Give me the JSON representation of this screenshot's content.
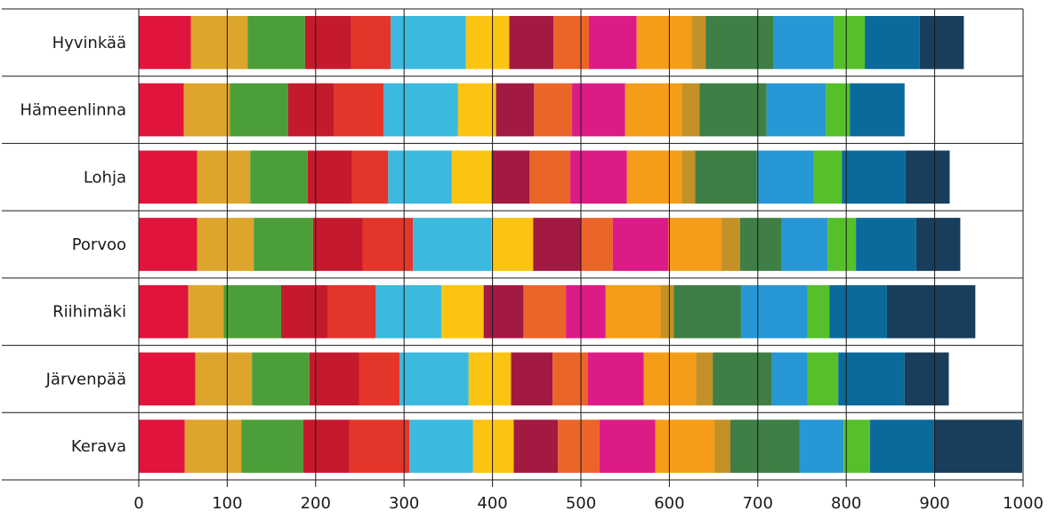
{
  "chart_data": {
    "type": "bar",
    "orientation": "horizontal",
    "stacked": true,
    "title": "",
    "xlabel": "",
    "ylabel": "",
    "xlim": [
      0,
      1000
    ],
    "xticks": [
      0,
      100,
      200,
      300,
      400,
      500,
      600,
      700,
      800,
      900,
      1000
    ],
    "grid": "vertical",
    "legend": "none",
    "categories": [
      "Hyvinkää",
      "Hämeenlinna",
      "Lohja",
      "Porvoo",
      "Riihimäki",
      "Järvenpää",
      "Kerava"
    ],
    "series": [
      {
        "color": "#E0143C",
        "values": [
          59,
          51,
          66,
          66,
          56,
          64,
          52
        ]
      },
      {
        "color": "#DDA52C",
        "values": [
          64,
          52,
          60,
          64,
          40,
          64,
          64
        ]
      },
      {
        "color": "#4C9F38",
        "values": [
          65,
          66,
          65,
          67,
          65,
          65,
          70
        ]
      },
      {
        "color": "#C5192D",
        "values": [
          52,
          52,
          50,
          56,
          53,
          56,
          52
        ]
      },
      {
        "color": "#E3352A",
        "values": [
          45,
          56,
          41,
          57,
          54,
          46,
          68
        ]
      },
      {
        "color": "#3BB9DE",
        "values": [
          85,
          84,
          72,
          89,
          74,
          78,
          72
        ]
      },
      {
        "color": "#FBC412",
        "values": [
          49,
          43,
          45,
          47,
          48,
          48,
          46
        ]
      },
      {
        "color": "#A21942",
        "values": [
          50,
          43,
          43,
          54,
          45,
          47,
          50
        ]
      },
      {
        "color": "#EB6428",
        "values": [
          40,
          43,
          46,
          36,
          48,
          40,
          47
        ]
      },
      {
        "color": "#DC1B86",
        "values": [
          54,
          60,
          64,
          63,
          45,
          63,
          63
        ]
      },
      {
        "color": "#F59C18",
        "values": [
          62,
          64,
          62,
          60,
          62,
          59,
          67
        ]
      },
      {
        "color": "#C39125",
        "values": [
          16,
          20,
          15,
          21,
          15,
          19,
          18
        ]
      },
      {
        "color": "#3F7E44",
        "values": [
          77,
          76,
          70,
          47,
          76,
          67,
          78
        ]
      },
      {
        "color": "#2897D5",
        "values": [
          68,
          67,
          64,
          52,
          75,
          40,
          50
        ]
      },
      {
        "color": "#56C02B",
        "values": [
          35,
          27,
          32,
          32,
          25,
          35,
          30
        ]
      },
      {
        "color": "#0A6A9B",
        "values": [
          62,
          62,
          72,
          68,
          65,
          75,
          72
        ]
      },
      {
        "color": "#183E5C",
        "values": [
          50,
          0,
          50,
          50,
          100,
          50,
          100
        ]
      }
    ]
  }
}
